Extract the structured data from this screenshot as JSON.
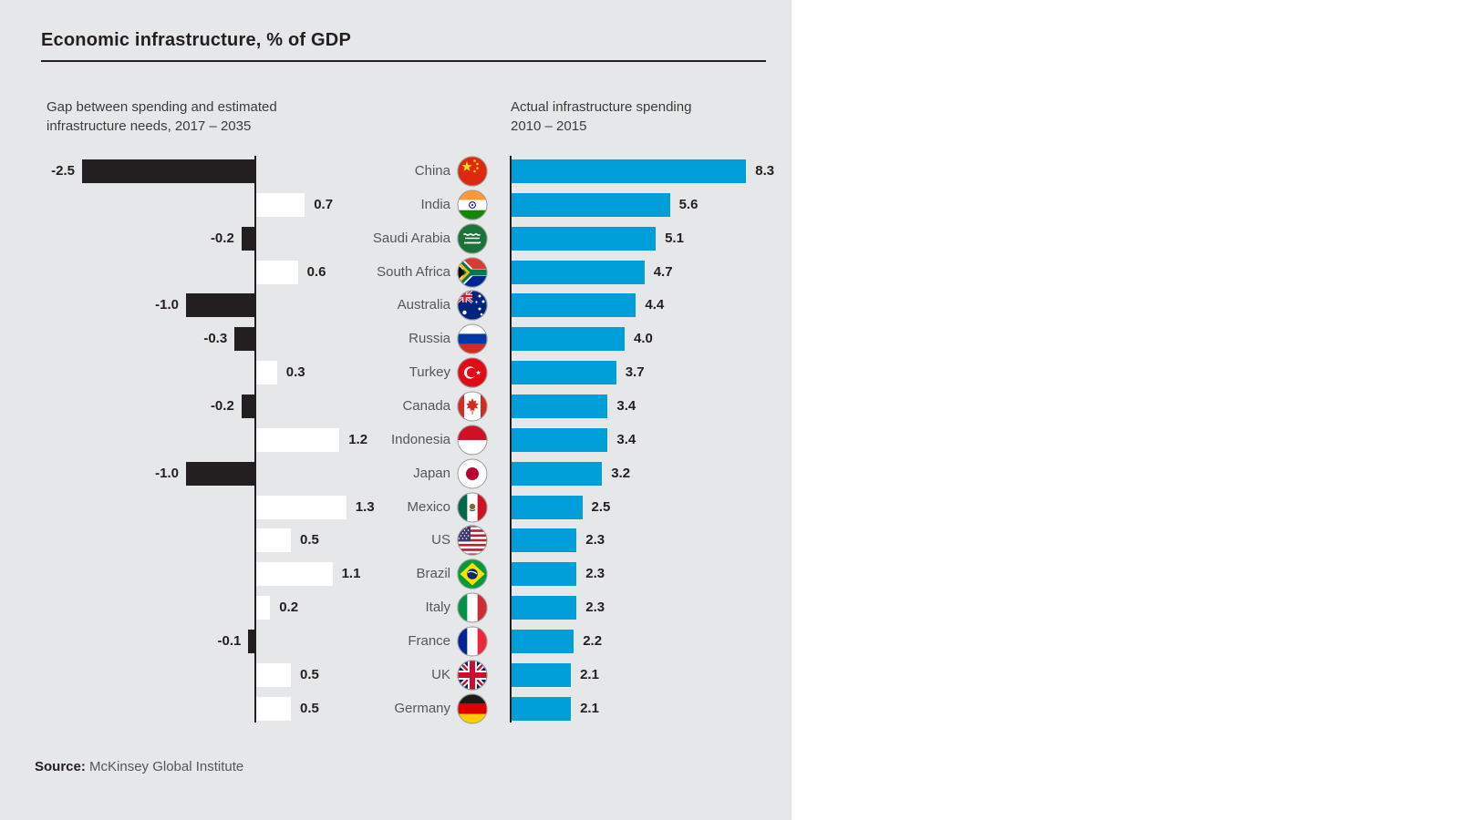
{
  "title": "Economic infrastructure, % of GDP",
  "left_panel": {
    "header_line1": "Gap between spending and estimated",
    "header_line2": "infrastructure needs, 2017 – 2035"
  },
  "right_panel": {
    "header_line1": "Actual infrastructure spending",
    "header_line2": "2010 – 2015"
  },
  "source": {
    "label": "Source:",
    "text": " McKinsey Global Institute"
  },
  "colors": {
    "panel_background": "#E6E7E8",
    "bar_gap_negative": "#231F20",
    "bar_gap_positive": "#FFFFFF",
    "bar_spending": "#009FDA",
    "axis": "#231F20",
    "value_label": "#231F20",
    "country_label": "#55565A",
    "title_text": "#231F20",
    "title_rule": "#231F20"
  },
  "chart_data": {
    "type": "bar",
    "orientation": "horizontal",
    "title": "Economic infrastructure, % of GDP",
    "categories": [
      "China",
      "India",
      "Saudi Arabia",
      "South Africa",
      "Australia",
      "Russia",
      "Turkey",
      "Canada",
      "Indonesia",
      "Japan",
      "Mexico",
      "US",
      "Brazil",
      "Italy",
      "France",
      "UK",
      "Germany"
    ],
    "flags": [
      "cn",
      "in",
      "sa",
      "za",
      "au",
      "ru",
      "tr",
      "ca",
      "id",
      "jp",
      "mx",
      "us",
      "br",
      "it",
      "fr",
      "gb",
      "de"
    ],
    "series": [
      {
        "name": "Gap between spending and estimated infrastructure needs, 2017 – 2035",
        "values": [
          -2.5,
          0.7,
          -0.2,
          0.6,
          -1.0,
          -0.3,
          0.3,
          -0.2,
          1.2,
          -1.0,
          1.3,
          0.5,
          1.1,
          0.2,
          -0.1,
          0.5,
          0.5
        ]
      },
      {
        "name": "Actual infrastructure spending 2010 – 2015",
        "values": [
          8.3,
          5.6,
          5.1,
          4.7,
          4.4,
          4.0,
          3.7,
          3.4,
          3.4,
          3.2,
          2.5,
          2.3,
          2.3,
          2.3,
          2.2,
          2.1,
          2.1
        ]
      }
    ],
    "value_format": "one_decimal",
    "grid": false,
    "legend_position": "column-headers"
  }
}
